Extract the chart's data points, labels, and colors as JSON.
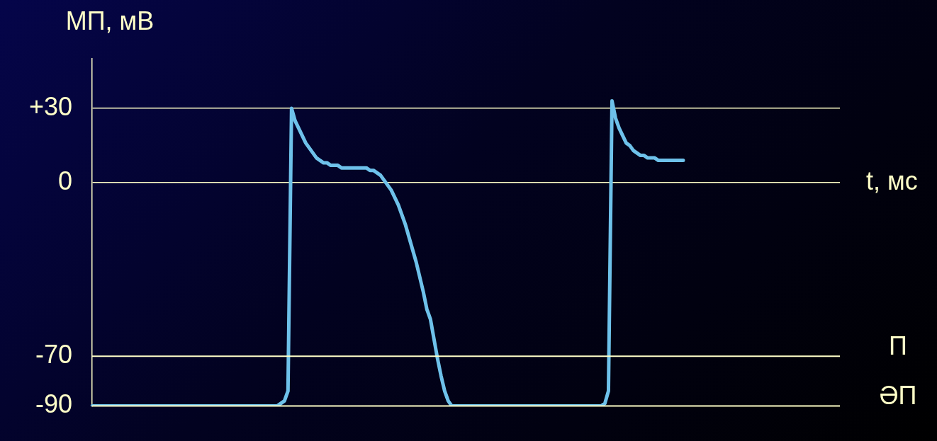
{
  "chart_data": {
    "type": "line",
    "xlabel": "t, мс",
    "ylabel": "МП, мВ",
    "categories": [
      null,
      null,
      null,
      null,
      null,
      null,
      null,
      null,
      null,
      null,
      null,
      null,
      null,
      null,
      null,
      null,
      null,
      null,
      null,
      null,
      null,
      null,
      null,
      null,
      null,
      null,
      null,
      null,
      null,
      null,
      null,
      null,
      null,
      null,
      null,
      null,
      null,
      null,
      null,
      null,
      null,
      null,
      null,
      null,
      null,
      null,
      null,
      null,
      null,
      null,
      null,
      null,
      null,
      null,
      null,
      null,
      null,
      null,
      null,
      null,
      null,
      null,
      null,
      null,
      null,
      null,
      null,
      null,
      null,
      null,
      null,
      null,
      null,
      null,
      null,
      null,
      null,
      null,
      null,
      null,
      null,
      null,
      null,
      null,
      null,
      null,
      null,
      null,
      null,
      null,
      null,
      null,
      null,
      null,
      null,
      null,
      null,
      null,
      null,
      null,
      null,
      null,
      null,
      null,
      null,
      null,
      null,
      null,
      null,
      null,
      null,
      null,
      null,
      null,
      null,
      null,
      null,
      null,
      null,
      null,
      null,
      null,
      null,
      null,
      null,
      null,
      null,
      null,
      null,
      null,
      null,
      null,
      null,
      null,
      null,
      null,
      null,
      null,
      null,
      null,
      null,
      null,
      null,
      null,
      null,
      null,
      null,
      null,
      null,
      null,
      null,
      null,
      null,
      null,
      null,
      null,
      null,
      null,
      null,
      null,
      null,
      null,
      null,
      null,
      null,
      null,
      null,
      null,
      null,
      null,
      null,
      null,
      null,
      null,
      null,
      null,
      null,
      null,
      null,
      null,
      null,
      null,
      null,
      null,
      null,
      null,
      null,
      null,
      null,
      null,
      null,
      null,
      null,
      null,
      null,
      null,
      null,
      null,
      null,
      null,
      null,
      null,
      null,
      null,
      null,
      null,
      null,
      null,
      null,
      null,
      null
    ],
    "series": [
      {
        "color": "#6ec1ea",
        "values": [
          -90,
          -90,
          -90,
          -90,
          -90,
          -90,
          -90,
          -90,
          -90,
          -90,
          -90,
          -90,
          -90,
          -90,
          -90,
          -90,
          -90,
          -90,
          -90,
          -90,
          -90,
          -90,
          -90,
          -90,
          -90,
          -90,
          -90,
          -90,
          -90,
          -90,
          -90,
          -90,
          -90,
          -90,
          -90,
          -90,
          -90,
          -90,
          -90,
          -90,
          -90,
          -90,
          -90,
          -90,
          -90,
          -90,
          -90,
          -90,
          -90,
          -90,
          -90,
          -90,
          -90,
          -89,
          -88,
          -84,
          30,
          25,
          22,
          19,
          16,
          14,
          12,
          10,
          9,
          8,
          8,
          7,
          7,
          7,
          6,
          6,
          6,
          6,
          6,
          6,
          6,
          6,
          5,
          5,
          4,
          3,
          1,
          -1,
          -3,
          -6,
          -9,
          -13,
          -17,
          -22,
          -27,
          -32,
          -38,
          -44,
          -51,
          -55,
          -63,
          -71,
          -78,
          -84,
          -88,
          -90,
          -90,
          -90,
          -90,
          -90,
          -90,
          -90,
          -90,
          -90,
          -90,
          -90,
          -90,
          -90,
          -90,
          -90,
          -90,
          -90,
          -90,
          -90,
          -90,
          -90,
          -90,
          -90,
          -90,
          -90,
          -90,
          -90,
          -90,
          -90,
          -90,
          -90,
          -90,
          -90,
          -90,
          -90,
          -90,
          -90,
          -90,
          -90,
          -90,
          -90,
          -90,
          -90,
          -89,
          -84,
          33,
          26,
          22,
          19,
          16,
          15,
          13,
          12,
          11,
          11,
          10,
          10,
          10,
          9,
          9,
          9,
          9,
          9,
          9,
          9,
          9,
          null,
          null,
          null,
          null,
          null,
          null,
          null,
          null,
          null,
          null,
          null,
          null,
          null,
          null,
          null,
          null,
          null,
          null,
          null,
          null,
          null,
          null,
          null,
          null,
          null,
          null,
          null,
          null,
          null,
          null,
          null,
          null,
          null,
          null,
          null,
          null,
          null,
          null,
          null,
          null,
          null,
          null,
          null,
          null
        ]
      }
    ],
    "ylim": [
      -90,
      50
    ],
    "yticks": [
      {
        "value": 30,
        "label": "+30"
      },
      0,
      -70,
      -90
    ],
    "ref_lines": [
      {
        "axis": "y",
        "value": -70,
        "label": "П"
      },
      {
        "axis": "y",
        "value": -90,
        "label": "ӘП"
      }
    ],
    "grid": "y",
    "legend": false,
    "tick_labels": "y",
    "marker": "none",
    "line_style": "solid"
  }
}
